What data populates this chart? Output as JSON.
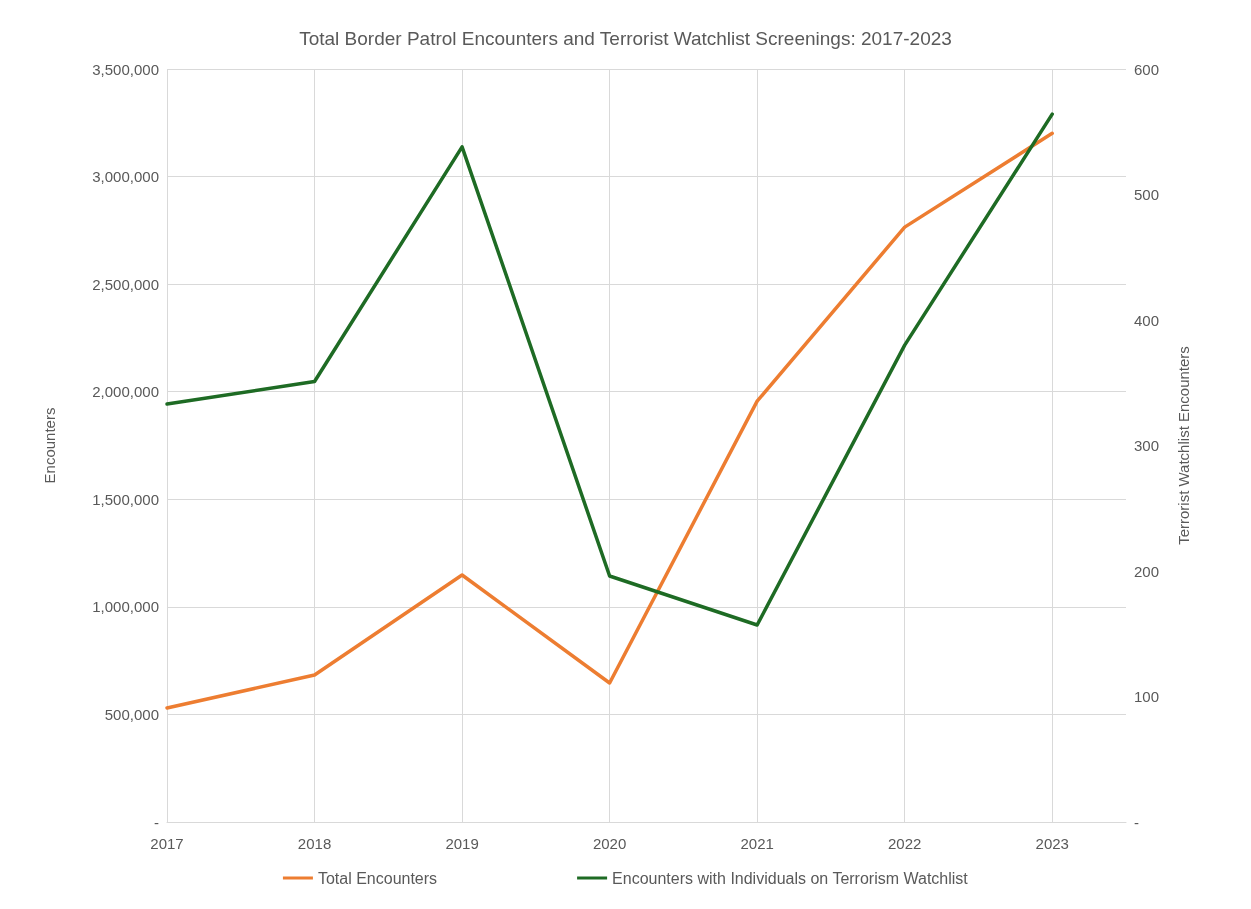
{
  "chart_data": {
    "type": "line",
    "title": "Total Border Patrol Encounters and Terrorist Watchlist Screenings: 2017-2023",
    "ylabel": "Encounters",
    "y2label": "Terrorist Watchlist Encounters",
    "x": [
      2017,
      2018,
      2019,
      2020,
      2021,
      2022,
      2023
    ],
    "xlim": [
      2017,
      2023.5
    ],
    "xticks": [
      2017,
      2018,
      2019,
      2020,
      2021,
      2022,
      2023
    ],
    "ylim": [
      0,
      3500000
    ],
    "yticks": [
      {
        "value": 0,
        "label": "-"
      },
      {
        "value": 500000,
        "label": "500,000"
      },
      {
        "value": 1000000,
        "label": "1,000,000"
      },
      {
        "value": 1500000,
        "label": "1,500,000"
      },
      {
        "value": 2000000,
        "label": "2,000,000"
      },
      {
        "value": 2500000,
        "label": "2,500,000"
      },
      {
        "value": 3000000,
        "label": "3,000,000"
      },
      {
        "value": 3500000,
        "label": "3,500,000"
      }
    ],
    "y2lim": [
      0,
      600
    ],
    "y2ticks": [
      {
        "value": 0,
        "label": "-"
      },
      100,
      200,
      300,
      400,
      500,
      600
    ],
    "series": [
      {
        "name": "Total Encounters",
        "color": "#ed7d31",
        "values": [
          530000,
          683000,
          1148000,
          646000,
          1956000,
          2765000,
          3201000
        ]
      },
      {
        "name": "Encounters with Individuals on Terrorism Watchlist",
        "color": "#1e6b24",
        "axis": "y2",
        "values": [
          333,
          351,
          538,
          196,
          157,
          380,
          564
        ]
      }
    ],
    "grid": true,
    "legend": "bottom",
    "marker": "none",
    "line_style": "solid"
  }
}
